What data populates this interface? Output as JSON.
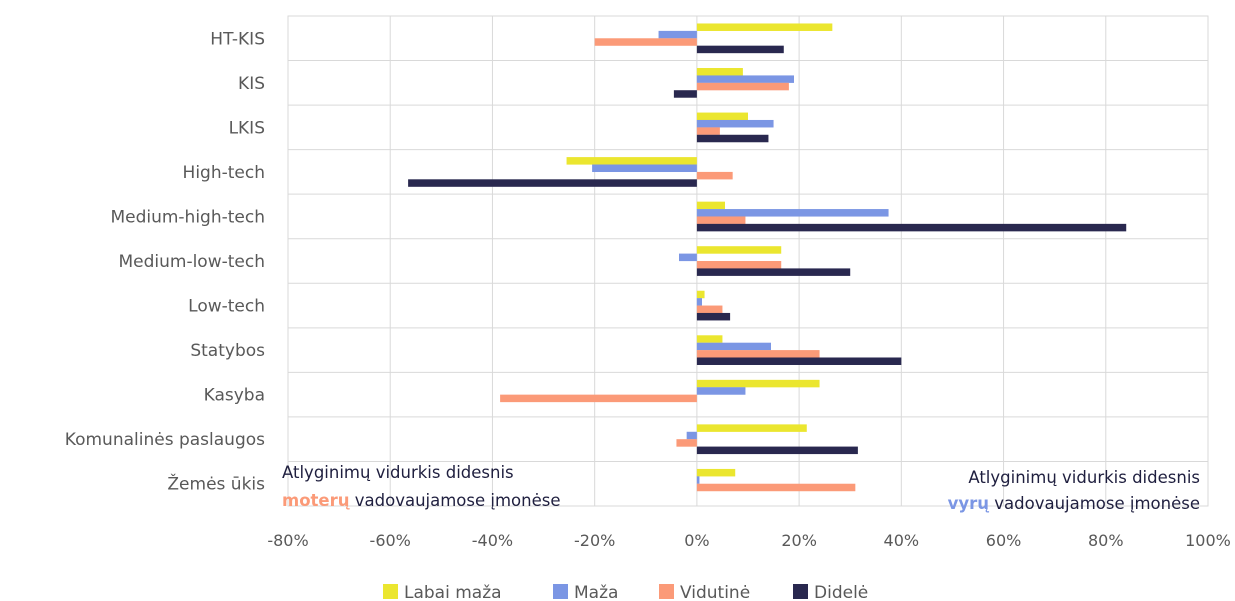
{
  "chart_data": {
    "type": "bar",
    "orientation": "horizontal",
    "categories": [
      "HT-KIS",
      "KIS",
      "LKIS",
      "High-tech",
      "Medium-high-tech",
      "Medium-low-tech",
      "Low-tech",
      "Statybos",
      "Kasyba",
      "Komunalinės paslaugos",
      "Žemės ūkis"
    ],
    "series": [
      {
        "name": "Labai maža",
        "color": "#ebe62f",
        "values": [
          26.5,
          9,
          10,
          -25.5,
          5.5,
          16.5,
          1.5,
          5,
          24,
          21.5,
          7.5
        ]
      },
      {
        "name": "Maža",
        "color": "#7b96e4",
        "values": [
          -7.5,
          19,
          15,
          -20.5,
          37.5,
          -3.5,
          1,
          14.5,
          9.5,
          -2,
          0.5
        ]
      },
      {
        "name": "Vidutinė",
        "color": "#fb9a78",
        "values": [
          -20,
          18,
          4.5,
          7,
          9.5,
          16.5,
          5,
          24,
          -38.5,
          -4,
          31
        ]
      },
      {
        "name": "Didelė",
        "color": "#29284f",
        "values": [
          17,
          -4.5,
          14,
          -56.5,
          84,
          30,
          6.5,
          40,
          0,
          31.5,
          0
        ]
      }
    ],
    "x_ticks": [
      "-80%",
      "-60%",
      "-40%",
      "-20%",
      "0%",
      "20%",
      "40%",
      "60%",
      "80%",
      "100%"
    ],
    "xlim": [
      -80,
      100
    ],
    "grid": true,
    "legend_position": "bottom",
    "annotations": {
      "left": {
        "line1": "Atlyginimų vidurkis didesnis",
        "highlight": "moterų",
        "rest": " vadovaujamose įmonėse",
        "highlight_color": "#fb9a78"
      },
      "right": {
        "line1": "Atlyginimų vidurkis didesnis",
        "highlight": "vyrų",
        "rest": " vadovaujamose įmonėse",
        "highlight_color": "#7b96e4"
      }
    }
  }
}
